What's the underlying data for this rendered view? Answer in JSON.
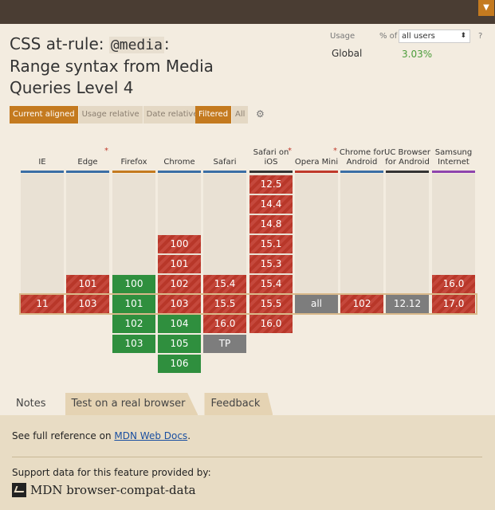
{
  "header": {
    "title_prefix": "CSS at-rule: ",
    "title_code": "@media",
    "title_suffix": ": Range syntax from Media Queries Level 4"
  },
  "usage": {
    "label": "Usage",
    "pct_of": "% of",
    "users_select": "all users",
    "help": "?",
    "global_label": "Global",
    "global_value": "3.03%"
  },
  "view_buttons": [
    "Current aligned",
    "Usage relative",
    "Date relative"
  ],
  "filter_buttons": [
    "Filtered",
    "All"
  ],
  "browsers": [
    {
      "name": "IE",
      "star": false,
      "color": "#3b6ea5"
    },
    {
      "name": "Edge",
      "star": true,
      "color": "#3b6ea5"
    },
    {
      "name": "Firefox",
      "star": false,
      "color": "#c47a1f"
    },
    {
      "name": "Chrome",
      "star": false,
      "color": "#3b6ea5"
    },
    {
      "name": "Safari",
      "star": false,
      "color": "#3b6ea5"
    },
    {
      "name": "Safari on iOS",
      "star": true,
      "color": "#333333"
    },
    {
      "name": "Opera Mini",
      "star": true,
      "color": "#c0392b"
    },
    {
      "name": "Chrome for Android",
      "star": false,
      "color": "#3b6ea5"
    },
    {
      "name": "UC Browser for Android",
      "star": false,
      "color": "#333333"
    },
    {
      "name": "Samsung Internet",
      "star": false,
      "color": "#8e44ad"
    }
  ],
  "cells": {
    "ie": [
      {
        "v": "11",
        "s": "red",
        "row": 6
      }
    ],
    "edge": [
      {
        "v": "101",
        "s": "red",
        "row": 5
      },
      {
        "v": "103",
        "s": "red",
        "row": 6
      }
    ],
    "firefox": [
      {
        "v": "100",
        "s": "green",
        "row": 5
      },
      {
        "v": "101",
        "s": "green",
        "row": 6
      },
      {
        "v": "102",
        "s": "green",
        "row": 7
      },
      {
        "v": "103",
        "s": "green",
        "row": 8
      }
    ],
    "chrome": [
      {
        "v": "100",
        "s": "red",
        "row": 3
      },
      {
        "v": "101",
        "s": "red",
        "row": 4
      },
      {
        "v": "102",
        "s": "red",
        "row": 5
      },
      {
        "v": "103",
        "s": "red",
        "row": 6
      },
      {
        "v": "104",
        "s": "green",
        "row": 7
      },
      {
        "v": "105",
        "s": "green",
        "row": 8
      },
      {
        "v": "106",
        "s": "green",
        "row": 9
      }
    ],
    "safari": [
      {
        "v": "15.4",
        "s": "red",
        "row": 5
      },
      {
        "v": "15.5",
        "s": "red",
        "row": 6
      },
      {
        "v": "16.0",
        "s": "red",
        "row": 7
      },
      {
        "v": "TP",
        "s": "gray",
        "row": 8
      }
    ],
    "ios": [
      {
        "v": "12.5",
        "s": "red",
        "row": 0
      },
      {
        "v": "14.4",
        "s": "red",
        "row": 1
      },
      {
        "v": "14.8",
        "s": "red",
        "row": 2
      },
      {
        "v": "15.1",
        "s": "red",
        "row": 3
      },
      {
        "v": "15.3",
        "s": "red",
        "row": 4
      },
      {
        "v": "15.4",
        "s": "red",
        "row": 5
      },
      {
        "v": "15.5",
        "s": "red",
        "row": 6
      },
      {
        "v": "16.0",
        "s": "red",
        "row": 7
      }
    ],
    "opera_mini": [
      {
        "v": "all",
        "s": "gray",
        "row": 6
      }
    ],
    "chrome_android": [
      {
        "v": "102",
        "s": "red",
        "row": 6
      }
    ],
    "uc": [
      {
        "v": "12.12",
        "s": "gray",
        "row": 6
      }
    ],
    "samsung": [
      {
        "v": "16.0",
        "s": "red",
        "row": 5
      },
      {
        "v": "17.0",
        "s": "red",
        "row": 6
      }
    ]
  },
  "tabs": [
    "Notes",
    "Test on a real browser",
    "Feedback"
  ],
  "notes": {
    "ref_prefix": "See full reference on ",
    "ref_link": "MDN Web Docs",
    "ref_suffix": ".",
    "support_text": "Support data for this feature provided by:",
    "mdn_label": "MDN browser-compat-data"
  },
  "icons": {
    "filter": "filter-icon",
    "gear": "gear-icon",
    "mdn": "mdn-logo-icon"
  }
}
